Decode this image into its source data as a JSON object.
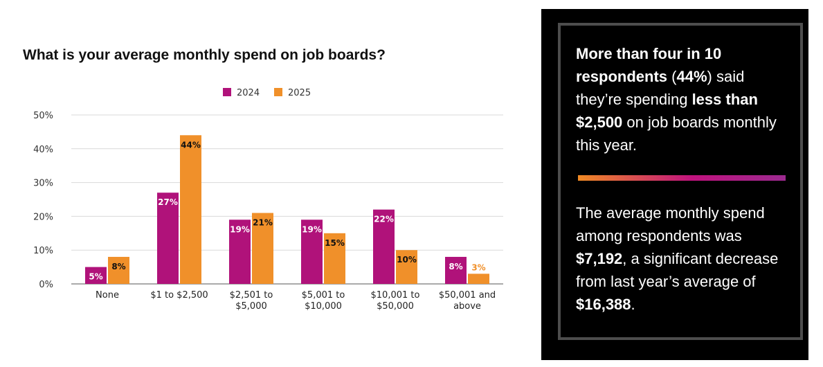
{
  "chart_title": "What is your average monthly spend on job boards?",
  "colors": {
    "series_2024": "#b0127a",
    "series_2025": "#f0902a",
    "label_above": "#f0902a"
  },
  "chart_data": {
    "type": "bar",
    "title": "What is your average monthly spend on job boards?",
    "categories": [
      [
        "None"
      ],
      [
        "$1 to $2,500"
      ],
      [
        "$2,501 to",
        "$5,000"
      ],
      [
        "$5,001 to",
        "$10,000"
      ],
      [
        "$10,001 to",
        "$50,000"
      ],
      [
        "$50,001 and",
        "above"
      ]
    ],
    "series": [
      {
        "name": "2024",
        "color": "#b0127a",
        "values": [
          5,
          27,
          19,
          19,
          22,
          8
        ],
        "labels": [
          "5%",
          "27%",
          "19%",
          "19%",
          "22%",
          "8%"
        ]
      },
      {
        "name": "2025",
        "color": "#f0902a",
        "values": [
          8,
          44,
          21,
          15,
          10,
          3
        ],
        "labels": [
          "8%",
          "44%",
          "21%",
          "15%",
          "10%",
          "3%"
        ]
      }
    ],
    "ylim": [
      0,
      50
    ],
    "yticks": [
      "0%",
      "10%",
      "20%",
      "30%",
      "40%",
      "50%"
    ],
    "ytick_values": [
      0,
      10,
      20,
      30,
      40,
      50
    ],
    "xlabel": "",
    "ylabel": "",
    "grid": true,
    "legend_position": "top"
  },
  "insight": {
    "p1": {
      "b1": "More than four in 10 respondents",
      "t1": " (",
      "b2": "44%",
      "t2": ") said they’re spending ",
      "b3": "less than $2,500",
      "t3": " on job boards monthly this year."
    },
    "p2": {
      "t1": "The average monthly spend among respondents was ",
      "b1": "$7,192",
      "t2": ", a significant decrease from last year’s average of ",
      "b2": "$16,388",
      "t3": "."
    }
  }
}
